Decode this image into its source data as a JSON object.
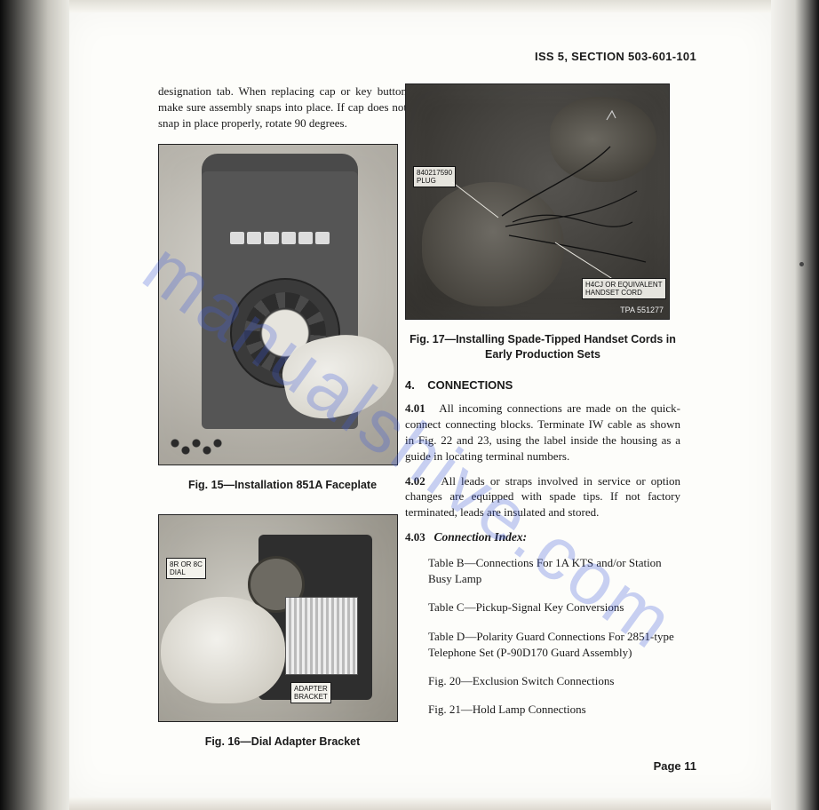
{
  "header": "ISS 5, SECTION 503-601-101",
  "page_label": "Page 11",
  "watermark": "manualshive.com",
  "left": {
    "top_para": "designation tab. When replacing cap or key button make sure assembly snaps into place. If cap does not snap in place properly, rotate 90 degrees.",
    "fig15_caption": "Fig. 15—Installation 851A Faceplate",
    "fig16_caption": "Fig. 16—Dial Adapter Bracket",
    "fig16_label_dial": "8R OR 8C\nDIAL",
    "fig16_label_bracket": "ADAPTER\nBRACKET"
  },
  "right": {
    "fig17_caption_l1": "Fig. 17—Installing Spade-Tipped Handset Cords in",
    "fig17_caption_l2": "Early Production Sets",
    "fig17_label_plug": "840217590\nPLUG",
    "fig17_label_cord": "H4CJ OR EQUIVALENT\nHANDSET CORD",
    "fig17_tpa": "TPA 551277",
    "section_num": "4.",
    "section_title": "CONNECTIONS",
    "p401_num": "4.01",
    "p401": "All incoming connections are made on the quick-connect connecting blocks. Terminate IW cable as shown in Fig. 22 and 23, using the label inside the housing as a guide in locating terminal numbers.",
    "p402_num": "4.02",
    "p402": "All leads or straps involved in service or option changes are equipped with spade tips. If not factory terminated, leads are insulated and stored.",
    "p403_num": "4.03",
    "p403_title": "Connection Index:",
    "idx": [
      "Table B—Connections For 1A KTS and/or Station Busy Lamp",
      "Table C—Pickup-Signal Key Conversions",
      "Table D—Polarity Guard Connections For 2851-type Telephone Set (P-90D170 Guard Assembly)",
      "Fig. 20—Exclusion Switch Connections",
      "Fig. 21—Hold Lamp Connections"
    ]
  }
}
